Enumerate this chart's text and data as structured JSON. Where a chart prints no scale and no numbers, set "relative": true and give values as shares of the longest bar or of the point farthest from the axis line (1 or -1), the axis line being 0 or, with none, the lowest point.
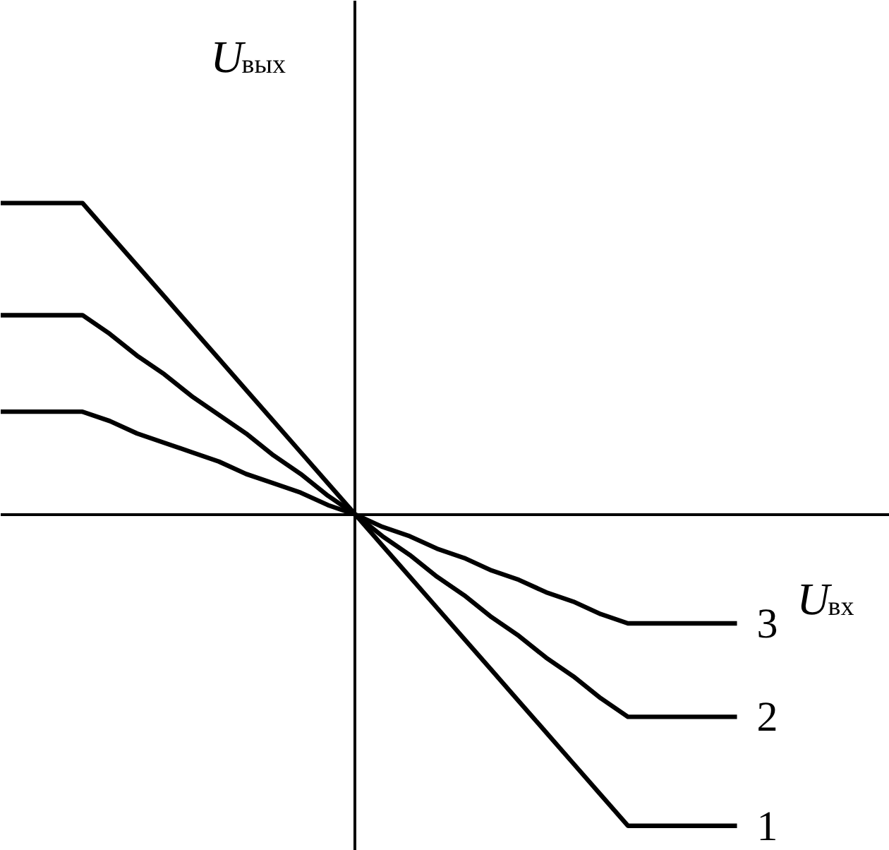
{
  "chart_data": {
    "type": "line",
    "relative": true,
    "xlabel": "U$_{вх}$",
    "ylabel": "U$_{вых}$",
    "tick_labels": false,
    "grid": false,
    "legend": false,
    "marker": "none",
    "line_style": "solid",
    "categories": [
      null,
      null,
      null,
      null,
      null,
      null,
      null,
      null,
      null,
      null,
      null,
      null,
      null,
      null,
      null,
      null,
      null,
      null,
      null,
      null,
      null,
      null,
      null,
      null,
      null,
      null,
      null,
      null
    ],
    "series": [
      {
        "name": "1",
        "color": "#000000",
        "values": [
          1,
          1,
          1,
          1,
          0.9,
          0.8,
          0.7,
          0.6,
          0.5,
          0.4,
          0.3,
          0.2,
          0.1,
          0,
          -0.1,
          -0.2,
          -0.3,
          -0.4,
          -0.5,
          -0.6,
          -0.7,
          -0.8,
          -0.9,
          -1,
          -1,
          -1,
          -1,
          -1
        ]
      },
      {
        "name": "2",
        "color": "#000000",
        "values": [
          0.64,
          0.64,
          0.64,
          0.64,
          0.58,
          0.51,
          0.45,
          0.38,
          0.32,
          0.26,
          0.19,
          0.13,
          0.06,
          0,
          -0.07,
          -0.13,
          -0.2,
          -0.26,
          -0.33,
          -0.39,
          -0.46,
          -0.52,
          -0.59,
          -0.65,
          -0.65,
          -0.65,
          -0.65,
          -0.65
        ]
      },
      {
        "name": "3",
        "color": "#000000",
        "values": [
          0.33,
          0.33,
          0.33,
          0.33,
          0.3,
          0.26,
          0.23,
          0.2,
          0.17,
          0.13,
          0.1,
          0.07,
          0.03,
          0,
          -0.04,
          -0.07,
          -0.11,
          -0.14,
          -0.18,
          -0.21,
          -0.25,
          -0.28,
          -0.32,
          -0.35,
          -0.35,
          -0.35,
          -0.35,
          -0.35
        ]
      }
    ]
  }
}
